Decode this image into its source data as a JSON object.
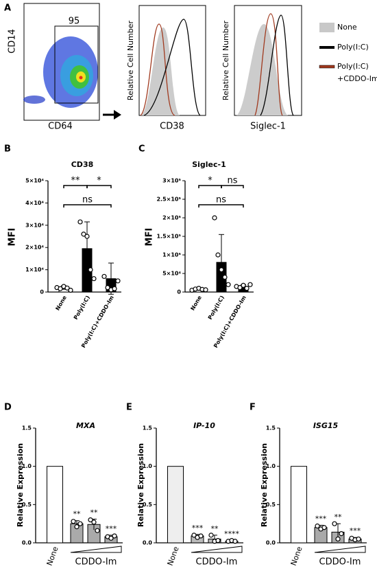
{
  "panel_a": {
    "label": "A",
    "x_label": "CD64",
    "y_label": "CD14",
    "gate_percent": 95,
    "histograms": [
      {
        "x_label": "CD38",
        "y_label": "Relative Cell Number"
      },
      {
        "x_label": "Siglec-1",
        "y_label": "Relative Cell Number"
      }
    ],
    "legend": [
      {
        "lines": [
          "None"
        ],
        "color": "#c8c8c8"
      },
      {
        "lines": [
          "Poly(I:C)"
        ],
        "color": "#000000"
      },
      {
        "lines": [
          "Poly(I:C)",
          "+CDDO-Im"
        ],
        "color": "#a0391e"
      }
    ]
  },
  "chart_data": [
    {
      "type": "bar",
      "panel": "B",
      "title": "CD38",
      "y_label": "MFI",
      "categories": [
        "None",
        "Poly(I:C)",
        "Poly(I:C)+CDDO-Im"
      ],
      "values": [
        2000,
        19500,
        6000
      ],
      "errors": [
        800,
        12000,
        7000
      ],
      "points": [
        [
          2000,
          1500,
          2500,
          1800,
          800
        ],
        [
          31500,
          26000,
          25000,
          10000,
          6000
        ],
        [
          7000,
          2000,
          1000,
          1500,
          5000
        ]
      ],
      "colors": [
        "#ffffff",
        "#000000",
        "#000000"
      ],
      "ylim": [
        0,
        50000
      ],
      "yticks": [
        0,
        {
          "value": 10000,
          "label": "1×10⁴"
        },
        {
          "value": 20000,
          "label": "2×10⁴"
        },
        {
          "value": 30000,
          "label": "3×10⁴"
        },
        {
          "value": 40000,
          "label": "4×10⁴"
        },
        {
          "value": 50000,
          "label": "5×10⁴"
        }
      ],
      "significance": [
        "**",
        "*",
        "ns"
      ]
    },
    {
      "type": "bar",
      "panel": "C",
      "title": "Siglec-1",
      "y_label": "MFI",
      "categories": [
        "None",
        "Poly(I:C)",
        "Poly(I:C)+CDDO-Im"
      ],
      "values": [
        8000,
        80000,
        15000
      ],
      "errors": [
        3000,
        75000,
        5000
      ],
      "points": [
        [
          5000,
          8000,
          10000,
          7000,
          6000
        ],
        [
          200000,
          100000,
          60000,
          40000,
          20000
        ],
        [
          15000,
          12000,
          18000,
          10000,
          20000
        ]
      ],
      "colors": [
        "#ffffff",
        "#000000",
        "#000000"
      ],
      "ylim": [
        0,
        300000
      ],
      "yticks": [
        0,
        {
          "value": 50000,
          "label": "5×10⁴"
        },
        {
          "value": 100000,
          "label": "1×10⁵"
        },
        {
          "value": 150000,
          "label": "1.5×10⁵"
        },
        {
          "value": 200000,
          "label": "2×10⁵"
        },
        {
          "value": 250000,
          "label": "2.5×10⁵"
        },
        {
          "value": 300000,
          "label": "3×10⁵"
        }
      ],
      "significance": [
        "*",
        "ns",
        "ns"
      ]
    },
    {
      "type": "bar",
      "panel": "D",
      "title": "MXA",
      "y_label": "Relative Expression",
      "x_label": "CDDO-Im",
      "categories": [
        "None",
        null,
        null,
        null
      ],
      "values": [
        1,
        0.25,
        0.24,
        0.08
      ],
      "errors": [
        null,
        0.04,
        0.07,
        0.02
      ],
      "points": [
        null,
        [
          0.28,
          0.21,
          0.25
        ],
        [
          0.3,
          0.27,
          0.16
        ],
        [
          0.08,
          0.06,
          0.09
        ]
      ],
      "colors": [
        "#ffffff",
        "#aaaaaa",
        "#aaaaaa",
        "#aaaaaa"
      ],
      "ylim": [
        0,
        1.5
      ],
      "yticks": [
        {
          "value": 0,
          "label": "0.0"
        },
        0.5,
        {
          "value": 1,
          "label": "1.0"
        },
        1.5
      ],
      "significance": [
        "**",
        "**",
        "***"
      ]
    },
    {
      "type": "bar",
      "panel": "E",
      "title": "IP-10",
      "y_label": "Relative Expression",
      "x_label": "CDDO-Im",
      "categories": [
        "None",
        null,
        null,
        null
      ],
      "values": [
        1,
        0.09,
        0.05,
        0.02
      ],
      "errors": [
        null,
        0.02,
        0.05,
        0.01
      ],
      "points": [
        null,
        [
          0.1,
          0.07,
          0.09
        ],
        [
          0.1,
          0.02,
          0.03
        ],
        [
          0.02,
          0.03,
          0.02
        ]
      ],
      "colors": [
        "#eeeeee",
        "#bbbbbb",
        "#bbbbbb",
        "#bbbbbb"
      ],
      "ylim": [
        0,
        1.5
      ],
      "yticks": [
        {
          "value": 0,
          "label": "0.0"
        },
        0.5,
        {
          "value": 1,
          "label": "1.0"
        },
        1.5
      ],
      "significance": [
        "***",
        "**",
        "****"
      ]
    },
    {
      "type": "bar",
      "panel": "F",
      "title": "ISG15",
      "y_label": "Relative Expression",
      "x_label": "CDDO-Im",
      "categories": [
        "None",
        null,
        null,
        null
      ],
      "values": [
        1,
        0.2,
        0.14,
        0.05
      ],
      "errors": [
        null,
        0.03,
        0.11,
        0.02
      ],
      "points": [
        null,
        [
          0.22,
          0.18,
          0.2
        ],
        [
          0.25,
          0.05,
          0.12
        ],
        [
          0.06,
          0.04,
          0.05
        ]
      ],
      "colors": [
        "#ffffff",
        "#aaaaaa",
        "#aaaaaa",
        "#aaaaaa"
      ],
      "ylim": [
        0,
        1.5
      ],
      "yticks": [
        {
          "value": 0,
          "label": "0.0"
        },
        0.5,
        {
          "value": 1,
          "label": "1.0"
        },
        1.5
      ],
      "significance": [
        "***",
        "**",
        "***"
      ]
    }
  ]
}
